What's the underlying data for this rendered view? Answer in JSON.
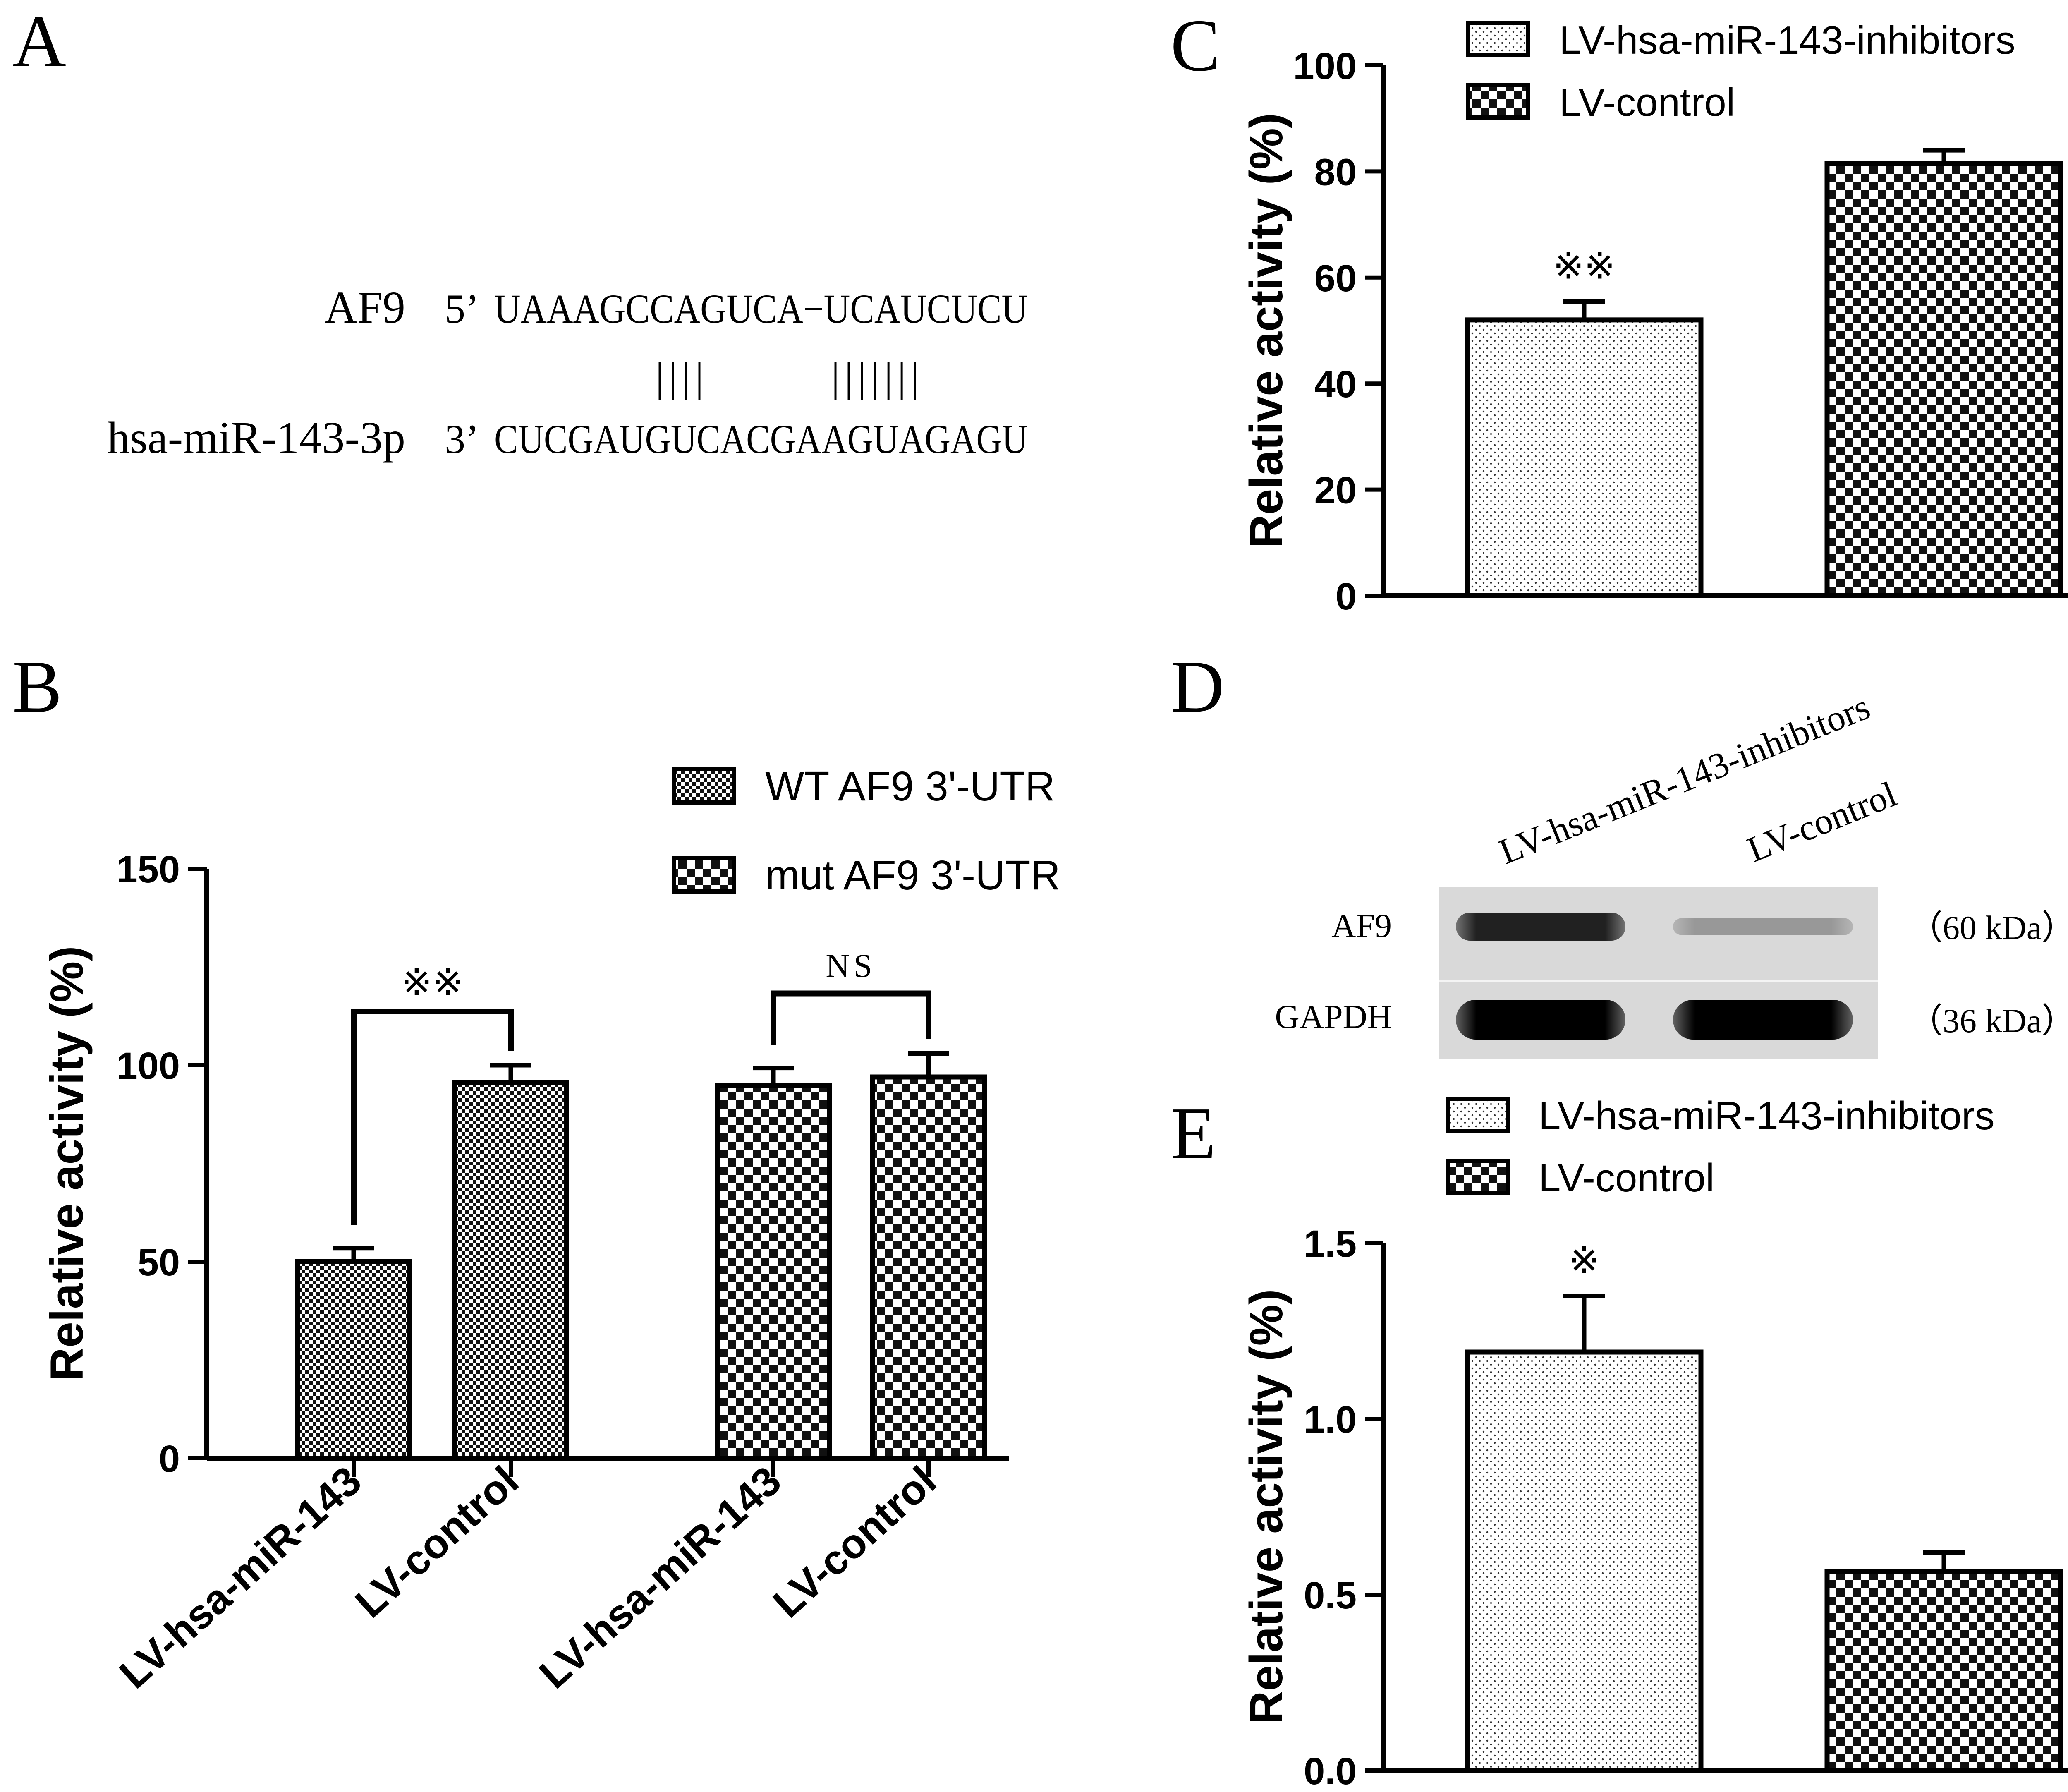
{
  "panel_labels": {
    "a": "A",
    "b": "B",
    "c": "C",
    "d": "D",
    "e": "E"
  },
  "sequence": {
    "row1": {
      "name": "AF9",
      "end": "5’",
      "seq": "UAAAGCCAGUCA−UCAUCUCU"
    },
    "row2": {
      "name": "hsa-miR-143-3p",
      "end": "3’",
      "seq": "CUCGAUGUCACGAAGUAGAGU"
    },
    "pairing_marks": [
      "||||",
      "|||||||"
    ]
  },
  "blot": {
    "lanes": [
      "LV-hsa-miR-143-inhibitors",
      "LV-control"
    ],
    "rows": [
      {
        "label": "AF9",
        "size": "（60 kDa）",
        "band_intensity": [
          0.85,
          0.3
        ]
      },
      {
        "label": "GAPDH",
        "size": "（36 kDa）",
        "band_intensity": [
          1.0,
          1.0
        ]
      }
    ]
  },
  "chart_data": [
    {
      "id": "B",
      "type": "bar",
      "categories": [
        "LV-hsa-miR-143",
        "LV-control",
        "LV-hsa-miR-143",
        "LV-control"
      ],
      "series": [
        {
          "name": "WT AF9 3'-UTR",
          "values": [
            50,
            95.5,
            null,
            null
          ],
          "errors": [
            3.5,
            4.5,
            null,
            null
          ],
          "pattern": "fine-check"
        },
        {
          "name": "mut AF9 3'-UTR",
          "values": [
            null,
            null,
            94.8,
            97
          ],
          "errors": [
            null,
            null,
            4.5,
            6
          ],
          "pattern": "coarse-check"
        }
      ],
      "ylabel": "Relative activity (%)",
      "ylim": [
        0,
        150
      ],
      "yticks": [
        0,
        50,
        100,
        150
      ],
      "legend_position": "top-right",
      "annotations": [
        {
          "text": "※※",
          "bracket": [
            0,
            1
          ]
        },
        {
          "text": "NS",
          "bracket": [
            2,
            3
          ]
        }
      ]
    },
    {
      "id": "C",
      "type": "bar",
      "categories": [
        "LV-hsa-miR-143-inhibitors",
        "LV-control"
      ],
      "series": [
        {
          "name": "LV-hsa-miR-143-inhibitors",
          "values": [
            52,
            null
          ],
          "errors": [
            3.5,
            null
          ],
          "pattern": "dots"
        },
        {
          "name": "LV-control",
          "values": [
            null,
            81.5
          ],
          "errors": [
            null,
            2.5
          ],
          "pattern": "coarse-check"
        }
      ],
      "ylabel": "Relative activity (%)",
      "ylim": [
        0,
        100
      ],
      "yticks": [
        0,
        20,
        40,
        60,
        80,
        100
      ],
      "legend_position": "top",
      "annotations": [
        {
          "text": "※※",
          "bar": 0
        }
      ]
    },
    {
      "id": "E",
      "type": "bar",
      "categories": [
        "LV-hsa-miR-143-inhibitors",
        "LV-control"
      ],
      "series": [
        {
          "name": "LV-hsa-miR-143-inhibitors",
          "values": [
            1.19,
            null
          ],
          "errors": [
            0.16,
            null
          ],
          "pattern": "dots"
        },
        {
          "name": "LV-control",
          "values": [
            null,
            0.565
          ],
          "errors": [
            null,
            0.055
          ],
          "pattern": "coarse-check"
        }
      ],
      "ylabel": "Relative activity (%)",
      "ylim": [
        0,
        1.5
      ],
      "yticks": [
        "0.0",
        "0.5",
        "1.0",
        "1.5"
      ],
      "legend_position": "top",
      "annotations": [
        {
          "text": "※",
          "bar": 0
        }
      ]
    }
  ]
}
